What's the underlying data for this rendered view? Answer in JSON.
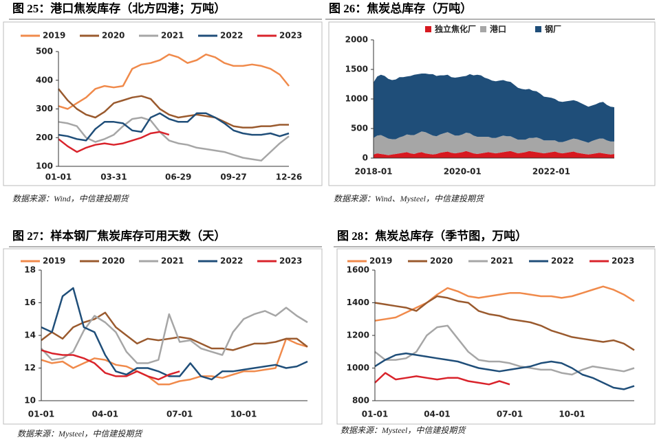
{
  "chart_data": [
    {
      "type": "line",
      "title": "图 25：港口焦炭库存（北方四港；万吨）",
      "source": "数据来源：Wind，中信建投期货",
      "categories": [
        "01-01",
        null,
        null,
        null,
        null,
        null,
        "03-31",
        null,
        null,
        null,
        null,
        null,
        null,
        "06-29",
        null,
        null,
        null,
        null,
        null,
        "09-27",
        null,
        null,
        null,
        null,
        null,
        "12-26"
      ],
      "ylim": [
        100,
        500
      ],
      "yticks": [
        100,
        200,
        300,
        400,
        500
      ],
      "legend": "top",
      "series": [
        {
          "name": "2019",
          "color": "#f08a4b",
          "values": [
            310,
            300,
            320,
            340,
            370,
            380,
            375,
            380,
            440,
            455,
            460,
            470,
            490,
            480,
            460,
            470,
            490,
            480,
            460,
            450,
            450,
            455,
            450,
            440,
            420,
            380
          ]
        },
        {
          "name": "2020",
          "color": "#9a5a2e",
          "values": [
            370,
            330,
            300,
            280,
            270,
            290,
            320,
            330,
            340,
            345,
            335,
            300,
            280,
            270,
            275,
            280,
            275,
            270,
            255,
            240,
            235,
            235,
            240,
            240,
            245,
            245
          ]
        },
        {
          "name": "2021",
          "color": "#a6a6a6",
          "values": [
            255,
            250,
            240,
            200,
            185,
            195,
            210,
            240,
            265,
            270,
            260,
            220,
            190,
            180,
            175,
            165,
            160,
            155,
            150,
            140,
            130,
            125,
            120,
            150,
            180,
            205
          ]
        },
        {
          "name": "2022",
          "color": "#1f4e79",
          "values": [
            210,
            205,
            195,
            190,
            230,
            255,
            255,
            250,
            225,
            220,
            270,
            285,
            265,
            255,
            255,
            285,
            285,
            270,
            250,
            225,
            215,
            210,
            210,
            215,
            205,
            215
          ]
        },
        {
          "name": "2023",
          "color": "#d9232b",
          "values": [
            195,
            170,
            150,
            165,
            175,
            180,
            175,
            180,
            190,
            200,
            215,
            220,
            210,
            null,
            null,
            null,
            null,
            null,
            null,
            null,
            null,
            null,
            null,
            null,
            null,
            null
          ]
        }
      ]
    },
    {
      "type": "stacked-area",
      "title": "图 26：焦炭总库存（万吨）",
      "source": "数据来源：Wind、Mysteel，中信建投期货",
      "categories": [
        "2018-01",
        null,
        null,
        null,
        null,
        null,
        null,
        null,
        null,
        null,
        null,
        null,
        null,
        null,
        null,
        null,
        null,
        null,
        null,
        null,
        null,
        null,
        null,
        null,
        "2020-01",
        null,
        null,
        null,
        null,
        null,
        null,
        null,
        null,
        null,
        null,
        null,
        null,
        null,
        null,
        null,
        null,
        null,
        null,
        null,
        null,
        null,
        null,
        null,
        "2022-01",
        null,
        null,
        null,
        null,
        null,
        null,
        null,
        null,
        null,
        null,
        null,
        null,
        null,
        null,
        null,
        null,
        null
      ],
      "ylim": [
        0,
        2000
      ],
      "yticks": [
        0,
        500,
        1000,
        1500,
        2000
      ],
      "legend": "top",
      "series": [
        {
          "name": "独立焦化厂",
          "color": "#d71920",
          "values": [
            60,
            80,
            70,
            60,
            50,
            60,
            70,
            80,
            90,
            100,
            80,
            70,
            90,
            100,
            80,
            70,
            60,
            70,
            90,
            100,
            110,
            90,
            80,
            90,
            100,
            120,
            100,
            80,
            70,
            80,
            90,
            100,
            90,
            80,
            90,
            100,
            110,
            120,
            100,
            80,
            90,
            100,
            120,
            110,
            100,
            90,
            80,
            90,
            100,
            110,
            90,
            80,
            90,
            100,
            110,
            90,
            80,
            70,
            60,
            70,
            80,
            90,
            80,
            70,
            60,
            70
          ]
        },
        {
          "name": "港口",
          "color": "#a6a6a6",
          "values": [
            280,
            300,
            320,
            300,
            280,
            260,
            250,
            270,
            280,
            300,
            310,
            320,
            330,
            350,
            360,
            340,
            320,
            300,
            310,
            320,
            330,
            320,
            300,
            290,
            300,
            310,
            320,
            300,
            290,
            280,
            270,
            260,
            250,
            260,
            270,
            280,
            260,
            250,
            240,
            230,
            220,
            210,
            220,
            230,
            250,
            240,
            220,
            210,
            200,
            190,
            180,
            190,
            200,
            210,
            220,
            230,
            220,
            210,
            200,
            220,
            230,
            240,
            250,
            230,
            220,
            210
          ]
        },
        {
          "name": "钢厂",
          "color": "#1f4e79",
          "values": [
            940,
            1000,
            1020,
            1030,
            1010,
            1000,
            1010,
            1020,
            1000,
            980,
            1000,
            1020,
            1000,
            980,
            990,
            1010,
            1040,
            1020,
            1000,
            980,
            970,
            960,
            980,
            990,
            980,
            960,
            1000,
            1020,
            1050,
            1040,
            1000,
            980,
            970,
            960,
            950,
            940,
            930,
            920,
            900,
            880,
            860,
            850,
            830,
            800,
            780,
            760,
            740,
            730,
            720,
            700,
            690,
            680,
            670,
            660,
            650,
            640,
            630,
            620,
            610,
            600,
            600,
            610,
            620,
            600,
            590,
            580
          ]
        }
      ]
    },
    {
      "type": "line",
      "title": "图 27：样本钢厂焦炭库存可用天数（天）",
      "source": "数据来源：Mysteel，中信建投期货",
      "categories": [
        "01-01",
        null,
        null,
        null,
        null,
        null,
        "04-01",
        null,
        null,
        null,
        null,
        null,
        null,
        "07-01",
        null,
        null,
        null,
        null,
        null,
        "10-01",
        null,
        null,
        null,
        null,
        null,
        null
      ],
      "ylim": [
        10,
        18
      ],
      "yticks": [
        10,
        12,
        14,
        16,
        18
      ],
      "legend": "top",
      "series": [
        {
          "name": "2019",
          "color": "#f08a4b",
          "values": [
            12.5,
            12.3,
            12.4,
            12.0,
            12.3,
            12.6,
            12.5,
            12.2,
            12.1,
            11.8,
            11.5,
            11.0,
            11.0,
            11.2,
            11.3,
            11.5,
            11.5,
            11.4,
            11.6,
            11.8,
            11.8,
            11.9,
            12.0,
            13.8,
            13.5,
            13.3
          ]
        },
        {
          "name": "2020",
          "color": "#9a5a2e",
          "values": [
            13.7,
            14.2,
            13.8,
            14.5,
            14.8,
            15.0,
            15.4,
            14.5,
            14.0,
            13.5,
            13.8,
            13.7,
            13.8,
            13.9,
            13.8,
            13.5,
            13.2,
            13.2,
            13.1,
            13.3,
            13.5,
            13.5,
            13.6,
            13.8,
            13.8,
            13.3
          ]
        },
        {
          "name": "2021",
          "color": "#a6a6a6",
          "values": [
            13.2,
            12.5,
            12.6,
            13.0,
            14.3,
            15.2,
            14.8,
            14.2,
            13.0,
            12.3,
            12.3,
            12.5,
            15.3,
            13.6,
            13.7,
            13.2,
            13.0,
            12.8,
            14.2,
            15.0,
            15.3,
            15.5,
            15.2,
            15.7,
            15.2,
            14.8
          ]
        },
        {
          "name": "2022",
          "color": "#1f4e79",
          "values": [
            14.5,
            14.2,
            16.4,
            16.9,
            14.5,
            14.2,
            12.8,
            11.8,
            11.6,
            12.0,
            12.0,
            11.8,
            11.5,
            11.5,
            12.3,
            11.5,
            11.3,
            11.8,
            11.8,
            11.9,
            12.0,
            12.1,
            12.2,
            12.0,
            12.1,
            12.4
          ]
        },
        {
          "name": "2023",
          "color": "#d9232b",
          "values": [
            13.1,
            12.9,
            12.8,
            12.8,
            12.6,
            12.3,
            11.7,
            11.5,
            11.5,
            11.8,
            11.5,
            11.3,
            11.6,
            11.8,
            null,
            null,
            null,
            null,
            null,
            null,
            null,
            null,
            null,
            null,
            null,
            null
          ]
        }
      ]
    },
    {
      "type": "line",
      "title": "图 28：焦炭总库存（季节图，万吨）",
      "source": "数据来源：Mysteel，中信建投期货",
      "categories": [
        "01-01",
        null,
        null,
        null,
        null,
        null,
        "04-01",
        null,
        null,
        null,
        null,
        null,
        null,
        "07-01",
        null,
        null,
        null,
        null,
        null,
        "10-01",
        null,
        null,
        null,
        null,
        null,
        null
      ],
      "ylim": [
        800,
        1600
      ],
      "yticks": [
        800,
        1000,
        1200,
        1400,
        1600
      ],
      "legend": "top",
      "series": [
        {
          "name": "2019",
          "color": "#f08a4b",
          "values": [
            1290,
            1300,
            1310,
            1340,
            1370,
            1400,
            1450,
            1490,
            1470,
            1440,
            1430,
            1440,
            1450,
            1460,
            1460,
            1450,
            1440,
            1440,
            1430,
            1440,
            1460,
            1480,
            1500,
            1480,
            1450,
            1410
          ]
        },
        {
          "name": "2020",
          "color": "#9a5a2e",
          "values": [
            1400,
            1390,
            1380,
            1370,
            1350,
            1400,
            1440,
            1430,
            1410,
            1400,
            1350,
            1330,
            1320,
            1300,
            1290,
            1280,
            1260,
            1230,
            1210,
            1190,
            1180,
            1170,
            1160,
            1170,
            1150,
            1110
          ]
        },
        {
          "name": "2021",
          "color": "#a6a6a6",
          "values": [
            1100,
            1050,
            1050,
            1060,
            1100,
            1200,
            1250,
            1260,
            1180,
            1100,
            1050,
            1040,
            1040,
            1030,
            1010,
            1000,
            990,
            990,
            970,
            960,
            990,
            1010,
            1000,
            990,
            980,
            1000
          ]
        },
        {
          "name": "2022",
          "color": "#1f4e79",
          "values": [
            1010,
            1050,
            1080,
            1090,
            1080,
            1070,
            1060,
            1050,
            1040,
            1020,
            1000,
            990,
            980,
            990,
            1000,
            1010,
            1030,
            1040,
            1030,
            1000,
            960,
            940,
            910,
            880,
            870,
            890
          ]
        },
        {
          "name": "2023",
          "color": "#d9232b",
          "values": [
            910,
            970,
            930,
            940,
            950,
            940,
            930,
            940,
            940,
            920,
            910,
            900,
            920,
            900,
            null,
            null,
            null,
            null,
            null,
            null,
            null,
            null,
            null,
            null,
            null,
            null
          ]
        }
      ]
    }
  ]
}
